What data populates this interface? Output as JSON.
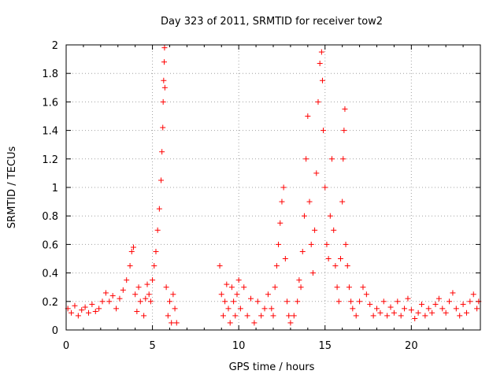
{
  "chart_data": {
    "type": "scatter",
    "title": "Day 323 of 2011, SRMTID for receiver tow2",
    "xlabel": "GPS time / hours",
    "ylabel": "SRMTID / TECUs",
    "xlim": [
      0,
      24
    ],
    "ylim": [
      0,
      2
    ],
    "xticks": [
      0,
      5,
      10,
      15,
      20
    ],
    "xtick_labels": [
      "0",
      "5",
      "10",
      "15",
      "20"
    ],
    "yticks": [
      0,
      0.2,
      0.4,
      0.6,
      0.8,
      1,
      1.2,
      1.4,
      1.6,
      1.8,
      2
    ],
    "ytick_labels": [
      "0",
      "0.2",
      "0.4",
      "0.6",
      "0.8",
      "1",
      "1.2",
      "1.4",
      "1.6",
      "1.8",
      "2"
    ],
    "grid": true,
    "marker": "+",
    "marker_color": "#ff0000",
    "series": [
      {
        "name": "tow2",
        "points": [
          [
            0.1,
            0.15
          ],
          [
            0.3,
            0.12
          ],
          [
            0.5,
            0.17
          ],
          [
            0.7,
            0.1
          ],
          [
            0.9,
            0.14
          ],
          [
            1.1,
            0.16
          ],
          [
            1.3,
            0.12
          ],
          [
            1.5,
            0.18
          ],
          [
            1.7,
            0.13
          ],
          [
            1.9,
            0.15
          ],
          [
            2.1,
            0.2
          ],
          [
            2.3,
            0.26
          ],
          [
            2.5,
            0.2
          ],
          [
            2.7,
            0.24
          ],
          [
            2.9,
            0.15
          ],
          [
            3.1,
            0.22
          ],
          [
            3.3,
            0.28
          ],
          [
            3.5,
            0.35
          ],
          [
            3.7,
            0.45
          ],
          [
            3.8,
            0.55
          ],
          [
            3.9,
            0.58
          ],
          [
            4.0,
            0.25
          ],
          [
            4.1,
            0.13
          ],
          [
            4.2,
            0.3
          ],
          [
            4.3,
            0.2
          ],
          [
            4.5,
            0.1
          ],
          [
            4.6,
            0.22
          ],
          [
            4.7,
            0.32
          ],
          [
            4.8,
            0.25
          ],
          [
            4.9,
            0.2
          ],
          [
            5.0,
            0.35
          ],
          [
            5.1,
            0.45
          ],
          [
            5.2,
            0.55
          ],
          [
            5.3,
            0.7
          ],
          [
            5.4,
            0.85
          ],
          [
            5.5,
            1.05
          ],
          [
            5.55,
            1.25
          ],
          [
            5.6,
            1.42
          ],
          [
            5.62,
            1.6
          ],
          [
            5.65,
            1.75
          ],
          [
            5.68,
            1.88
          ],
          [
            5.7,
            1.98
          ],
          [
            5.72,
            1.7
          ],
          [
            5.8,
            0.3
          ],
          [
            5.9,
            0.1
          ],
          [
            6.0,
            0.2
          ],
          [
            6.1,
            0.05
          ],
          [
            6.2,
            0.25
          ],
          [
            6.3,
            0.15
          ],
          [
            6.4,
            0.05
          ],
          [
            8.9,
            0.45
          ],
          [
            9.0,
            0.25
          ],
          [
            9.1,
            0.1
          ],
          [
            9.2,
            0.2
          ],
          [
            9.3,
            0.32
          ],
          [
            9.4,
            0.15
          ],
          [
            9.5,
            0.05
          ],
          [
            9.6,
            0.3
          ],
          [
            9.7,
            0.2
          ],
          [
            9.8,
            0.1
          ],
          [
            9.9,
            0.25
          ],
          [
            10.0,
            0.35
          ],
          [
            10.1,
            0.15
          ],
          [
            10.3,
            0.3
          ],
          [
            10.5,
            0.1
          ],
          [
            10.7,
            0.22
          ],
          [
            10.9,
            0.05
          ],
          [
            11.1,
            0.2
          ],
          [
            11.3,
            0.1
          ],
          [
            11.5,
            0.15
          ],
          [
            11.7,
            0.25
          ],
          [
            11.9,
            0.15
          ],
          [
            12.0,
            0.1
          ],
          [
            12.1,
            0.3
          ],
          [
            12.2,
            0.45
          ],
          [
            12.3,
            0.6
          ],
          [
            12.4,
            0.75
          ],
          [
            12.5,
            0.9
          ],
          [
            12.6,
            1.0
          ],
          [
            12.7,
            0.5
          ],
          [
            12.8,
            0.2
          ],
          [
            12.9,
            0.1
          ],
          [
            13.0,
            0.05
          ],
          [
            13.2,
            0.1
          ],
          [
            13.4,
            0.2
          ],
          [
            13.5,
            0.35
          ],
          [
            13.6,
            0.3
          ],
          [
            13.7,
            0.55
          ],
          [
            13.8,
            0.8
          ],
          [
            13.9,
            1.2
          ],
          [
            14.0,
            1.5
          ],
          [
            14.1,
            0.9
          ],
          [
            14.2,
            0.6
          ],
          [
            14.3,
            0.4
          ],
          [
            14.4,
            0.7
          ],
          [
            14.5,
            1.1
          ],
          [
            14.6,
            1.6
          ],
          [
            14.7,
            1.87
          ],
          [
            14.8,
            1.95
          ],
          [
            14.85,
            1.75
          ],
          [
            14.9,
            1.4
          ],
          [
            15.0,
            1.0
          ],
          [
            15.1,
            0.6
          ],
          [
            15.2,
            0.5
          ],
          [
            15.3,
            0.8
          ],
          [
            15.4,
            1.2
          ],
          [
            15.5,
            0.7
          ],
          [
            15.6,
            0.45
          ],
          [
            15.7,
            0.3
          ],
          [
            15.8,
            0.2
          ],
          [
            15.9,
            0.5
          ],
          [
            16.0,
            0.9
          ],
          [
            16.05,
            1.2
          ],
          [
            16.1,
            1.4
          ],
          [
            16.15,
            1.55
          ],
          [
            16.2,
            0.6
          ],
          [
            16.3,
            0.45
          ],
          [
            16.4,
            0.3
          ],
          [
            16.5,
            0.2
          ],
          [
            16.6,
            0.15
          ],
          [
            16.8,
            0.1
          ],
          [
            17.0,
            0.2
          ],
          [
            17.2,
            0.3
          ],
          [
            17.4,
            0.25
          ],
          [
            17.6,
            0.18
          ],
          [
            17.8,
            0.1
          ],
          [
            18.0,
            0.15
          ],
          [
            18.2,
            0.12
          ],
          [
            18.4,
            0.2
          ],
          [
            18.6,
            0.1
          ],
          [
            18.8,
            0.16
          ],
          [
            19.0,
            0.12
          ],
          [
            19.2,
            0.2
          ],
          [
            19.4,
            0.1
          ],
          [
            19.6,
            0.15
          ],
          [
            19.8,
            0.22
          ],
          [
            20.0,
            0.14
          ],
          [
            20.2,
            0.08
          ],
          [
            20.4,
            0.12
          ],
          [
            20.6,
            0.18
          ],
          [
            20.8,
            0.1
          ],
          [
            21.0,
            0.15
          ],
          [
            21.2,
            0.12
          ],
          [
            21.4,
            0.18
          ],
          [
            21.6,
            0.22
          ],
          [
            21.8,
            0.15
          ],
          [
            22.0,
            0.12
          ],
          [
            22.2,
            0.2
          ],
          [
            22.4,
            0.26
          ],
          [
            22.6,
            0.15
          ],
          [
            22.8,
            0.1
          ],
          [
            23.0,
            0.18
          ],
          [
            23.2,
            0.12
          ],
          [
            23.4,
            0.2
          ],
          [
            23.6,
            0.25
          ],
          [
            23.8,
            0.15
          ],
          [
            23.9,
            0.2
          ]
        ]
      }
    ]
  }
}
